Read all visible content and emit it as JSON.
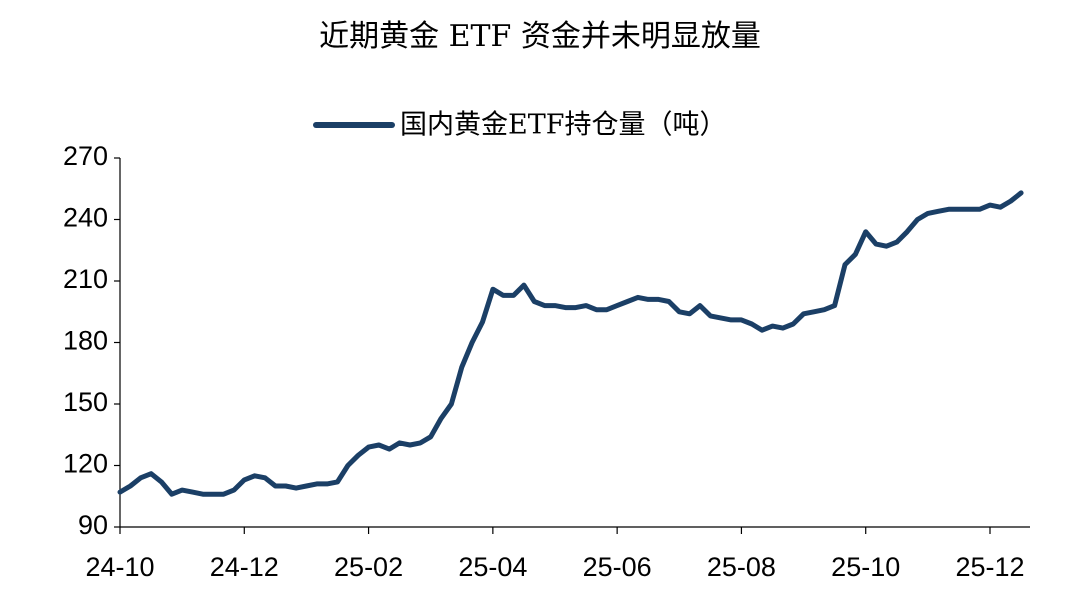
{
  "chart_data": {
    "type": "line",
    "title": "近期黄金 ETF 资金并未明显放量",
    "categories": [
      "24-10",
      null,
      null,
      null,
      null,
      null,
      null,
      null,
      null,
      null,
      null,
      null,
      "24-12",
      null,
      null,
      null,
      null,
      null,
      null,
      null,
      null,
      null,
      null,
      null,
      "25-02",
      null,
      null,
      null,
      null,
      null,
      null,
      null,
      null,
      null,
      null,
      null,
      "25-04",
      null,
      null,
      null,
      null,
      null,
      null,
      null,
      null,
      null,
      null,
      null,
      "25-06",
      null,
      null,
      null,
      null,
      null,
      null,
      null,
      null,
      null,
      null,
      null,
      "25-08",
      null,
      null,
      null,
      null,
      null,
      null,
      null,
      null,
      null,
      null,
      null,
      "25-10",
      null,
      null,
      null,
      null,
      null,
      null,
      null,
      null,
      null,
      null,
      null,
      "25-12",
      null,
      null,
      null
    ],
    "series": [
      {
        "name": "国内黄金ETF持仓量（吨）",
        "color": "#1b3f66",
        "values": [
          107,
          110,
          114,
          116,
          112,
          106,
          108,
          107,
          106,
          106,
          106,
          108,
          113,
          115,
          114,
          110,
          110,
          109,
          110,
          111,
          111,
          112,
          120,
          125,
          129,
          130,
          128,
          131,
          130,
          131,
          134,
          143,
          150,
          168,
          180,
          190,
          206,
          203,
          203,
          208,
          200,
          198,
          198,
          197,
          197,
          198,
          196,
          196,
          198,
          200,
          202,
          201,
          201,
          200,
          195,
          194,
          198,
          193,
          192,
          191,
          191,
          189,
          186,
          188,
          187,
          189,
          194,
          195,
          196,
          198,
          218,
          223,
          234,
          228,
          227,
          229,
          234,
          240,
          243,
          244,
          245,
          245,
          245,
          245,
          247,
          246,
          249,
          253
        ]
      }
    ],
    "ylim": [
      90,
      270
    ],
    "yticks": [
      90,
      120,
      150,
      180,
      210,
      240,
      270
    ],
    "grid": false
  }
}
